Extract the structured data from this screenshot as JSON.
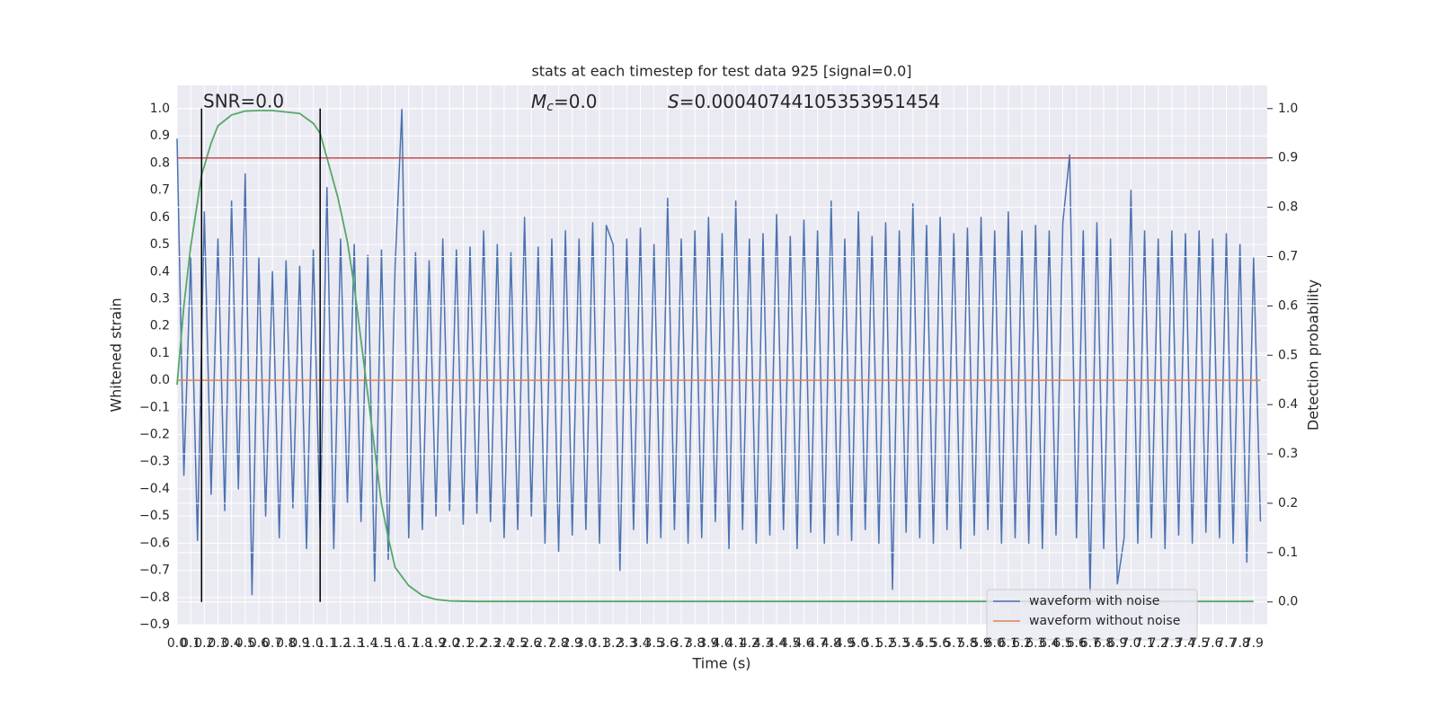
{
  "chart_data": {
    "type": "line",
    "title": "stats at each timestep for test data 925 [signal=0.0]",
    "x_label": "Time (s)",
    "y_label": "Whitened strain",
    "y2_label": "Detection probability",
    "annotations": {
      "snr": "SNR=0.0",
      "mc": {
        "symbol": "M",
        "sub": "c",
        "text": "=0.0"
      },
      "s": {
        "symbol": "S",
        "text": "=0.00040744105353951454"
      }
    },
    "xlim": [
      0,
      8
    ],
    "ylim": [
      -0.9,
      1.086
    ],
    "y2lim": [
      -0.046,
      1.047
    ],
    "xticks": [
      {
        "value": 0,
        "label": "0.0"
      },
      0.1,
      0.2,
      0.3,
      0.4,
      0.5,
      0.6,
      0.7,
      0.8,
      0.9,
      {
        "value": 1,
        "label": "1.0"
      },
      1.1,
      1.2,
      1.3,
      1.4,
      1.5,
      1.6,
      1.7,
      1.8,
      1.9,
      {
        "value": 2,
        "label": "2.0"
      },
      2.1,
      2.2,
      2.3,
      2.4,
      2.5,
      2.6,
      2.7,
      2.8,
      2.9,
      {
        "value": 3,
        "label": "3.0"
      },
      3.1,
      3.2,
      3.3,
      3.4,
      3.5,
      3.6,
      3.7,
      3.8,
      3.9,
      {
        "value": 4,
        "label": "4.0"
      },
      4.1,
      4.2,
      4.3,
      4.4,
      4.5,
      4.6,
      4.7,
      4.8,
      4.9,
      {
        "value": 5,
        "label": "5.0"
      },
      5.1,
      5.2,
      5.3,
      5.4,
      5.5,
      5.6,
      5.7,
      5.8,
      5.9,
      {
        "value": 6,
        "label": "6.0"
      },
      6.1,
      6.2,
      6.3,
      6.4,
      6.5,
      6.6,
      6.7,
      6.8,
      6.9,
      {
        "value": 7,
        "label": "7.0"
      },
      7.1,
      7.2,
      7.3,
      7.4,
      7.5,
      7.6,
      7.7,
      7.8,
      7.9
    ],
    "yticks": [
      {
        "value": -0.9,
        "label": "−0.9"
      },
      {
        "value": -0.8,
        "label": "−0.8"
      },
      {
        "value": -0.7,
        "label": "−0.7"
      },
      {
        "value": -0.6,
        "label": "−0.6"
      },
      {
        "value": -0.5,
        "label": "−0.5"
      },
      {
        "value": -0.4,
        "label": "−0.4"
      },
      {
        "value": -0.3,
        "label": "−0.3"
      },
      {
        "value": -0.2,
        "label": "−0.2"
      },
      {
        "value": -0.1,
        "label": "−0.1"
      },
      {
        "value": 0,
        "label": "0.0"
      },
      0.1,
      0.2,
      0.3,
      0.4,
      0.5,
      0.6,
      0.7,
      0.8,
      0.9,
      {
        "value": 1,
        "label": "1.0"
      }
    ],
    "y2ticks": [
      {
        "value": 0,
        "label": "0.0"
      },
      0.1,
      0.2,
      0.3,
      0.4,
      0.5,
      0.6,
      0.7,
      0.8,
      0.9,
      {
        "value": 1,
        "label": "1.0"
      }
    ],
    "grid": true,
    "legend": "lower right",
    "series": [
      {
        "name": "waveform with noise",
        "color": "#4c72b0",
        "x": [
          0,
          0.05,
          0.1,
          0.15,
          0.2,
          0.25,
          0.3,
          0.35,
          0.4,
          0.45,
          0.5,
          0.55,
          0.6,
          0.65,
          0.7,
          0.75,
          0.8,
          0.85,
          0.9,
          0.95,
          1,
          1.05,
          1.1,
          1.15,
          1.2,
          1.25,
          1.3,
          1.35,
          1.4,
          1.45,
          1.5,
          1.55,
          1.6,
          1.65,
          1.7,
          1.75,
          1.8,
          1.85,
          1.9,
          1.95,
          2,
          2.05,
          2.1,
          2.15,
          2.2,
          2.25,
          2.3,
          2.35,
          2.4,
          2.45,
          2.5,
          2.55,
          2.6,
          2.65,
          2.7,
          2.75,
          2.8,
          2.85,
          2.9,
          2.95,
          3,
          3.05,
          3.1,
          3.15,
          3.2,
          3.25,
          3.3,
          3.35,
          3.4,
          3.45,
          3.5,
          3.55,
          3.6,
          3.65,
          3.7,
          3.75,
          3.8,
          3.85,
          3.9,
          3.95,
          4,
          4.05,
          4.1,
          4.15,
          4.2,
          4.25,
          4.3,
          4.35,
          4.4,
          4.45,
          4.5,
          4.55,
          4.6,
          4.65,
          4.7,
          4.75,
          4.8,
          4.85,
          4.9,
          4.95,
          5,
          5.05,
          5.1,
          5.15,
          5.2,
          5.25,
          5.3,
          5.35,
          5.4,
          5.45,
          5.5,
          5.55,
          5.6,
          5.65,
          5.7,
          5.75,
          5.8,
          5.85,
          5.9,
          5.95,
          6,
          6.05,
          6.1,
          6.15,
          6.2,
          6.25,
          6.3,
          6.35,
          6.4,
          6.45,
          6.5,
          6.55,
          6.6,
          6.65,
          6.7,
          6.75,
          6.8,
          6.85,
          6.9,
          6.95,
          7,
          7.05,
          7.1,
          7.15,
          7.2,
          7.25,
          7.3,
          7.35,
          7.4,
          7.45,
          7.5,
          7.55,
          7.6,
          7.65,
          7.7,
          7.75,
          7.8,
          7.85,
          7.9,
          7.95
        ],
        "values": [
          0.89,
          -0.35,
          0.45,
          -0.59,
          0.62,
          -0.42,
          0.52,
          -0.48,
          0.66,
          -0.4,
          0.76,
          -0.79,
          0.45,
          -0.5,
          0.4,
          -0.58,
          0.44,
          -0.47,
          0.42,
          -0.62,
          0.48,
          -0.55,
          0.71,
          -0.62,
          0.52,
          -0.45,
          0.5,
          -0.52,
          0.46,
          -0.74,
          0.48,
          -0.66,
          0.42,
          1.0,
          -0.58,
          0.47,
          -0.55,
          0.44,
          -0.5,
          0.52,
          -0.48,
          0.48,
          -0.53,
          0.49,
          -0.49,
          0.55,
          -0.52,
          0.5,
          -0.58,
          0.47,
          -0.55,
          0.6,
          -0.5,
          0.49,
          -0.6,
          0.52,
          -0.63,
          0.55,
          -0.57,
          0.52,
          -0.55,
          0.58,
          -0.6,
          0.57,
          0.5,
          -0.7,
          0.52,
          -0.55,
          0.56,
          -0.6,
          0.5,
          -0.58,
          0.67,
          -0.55,
          0.52,
          -0.6,
          0.55,
          -0.58,
          0.6,
          -0.52,
          0.54,
          -0.62,
          0.66,
          -0.55,
          0.52,
          -0.6,
          0.54,
          -0.57,
          0.61,
          -0.55,
          0.53,
          -0.62,
          0.59,
          -0.56,
          0.55,
          -0.6,
          0.66,
          -0.57,
          0.52,
          -0.59,
          0.62,
          -0.55,
          0.53,
          -0.6,
          0.58,
          -0.77,
          0.55,
          -0.56,
          0.65,
          -0.58,
          0.57,
          -0.6,
          0.6,
          -0.55,
          0.54,
          -0.62,
          0.56,
          -0.57,
          0.6,
          -0.55,
          0.55,
          -0.6,
          0.62,
          -0.58,
          0.55,
          -0.6,
          0.57,
          -0.62,
          0.55,
          -0.57,
          0.58,
          0.83,
          -0.58,
          0.55,
          -0.78,
          0.58,
          -0.62,
          0.52,
          -0.75,
          -0.58,
          0.7,
          -0.6,
          0.55,
          -0.58,
          0.52,
          -0.62,
          0.55,
          -0.57,
          0.54,
          -0.6,
          0.55,
          -0.56,
          0.52,
          -0.58,
          0.54,
          -0.6,
          0.5,
          -0.67,
          0.45,
          -0.52
        ]
      },
      {
        "name": "waveform without noise",
        "color": "#dd8452",
        "x": [
          0,
          7.95
        ],
        "values": [
          0,
          0
        ]
      }
    ],
    "probability": {
      "color": "#55a868",
      "axis": "y2",
      "x": [
        0,
        0.05,
        0.1,
        0.18,
        0.25,
        0.3,
        0.4,
        0.5,
        0.6,
        0.7,
        0.8,
        0.9,
        1.0,
        1.05,
        1.1,
        1.18,
        1.25,
        1.3,
        1.35,
        1.4,
        1.45,
        1.5,
        1.55,
        1.6,
        1.7,
        1.8,
        1.9,
        2.0,
        2.2,
        7.9
      ],
      "values": [
        0.44,
        0.6,
        0.72,
        0.865,
        0.93,
        0.965,
        0.987,
        0.995,
        0.996,
        0.996,
        0.993,
        0.99,
        0.97,
        0.95,
        0.9,
        0.82,
        0.73,
        0.64,
        0.53,
        0.42,
        0.31,
        0.2,
        0.13,
        0.07,
        0.033,
        0.013,
        0.005,
        0.002,
        0.001,
        0.001
      ]
    },
    "threshold": {
      "value": 0.9,
      "color": "#c44e52",
      "axis": "y2"
    },
    "vlines": {
      "values": [
        0.18,
        1.05
      ],
      "color": "#000000",
      "axis": "y2",
      "span": [
        0,
        1
      ]
    }
  }
}
